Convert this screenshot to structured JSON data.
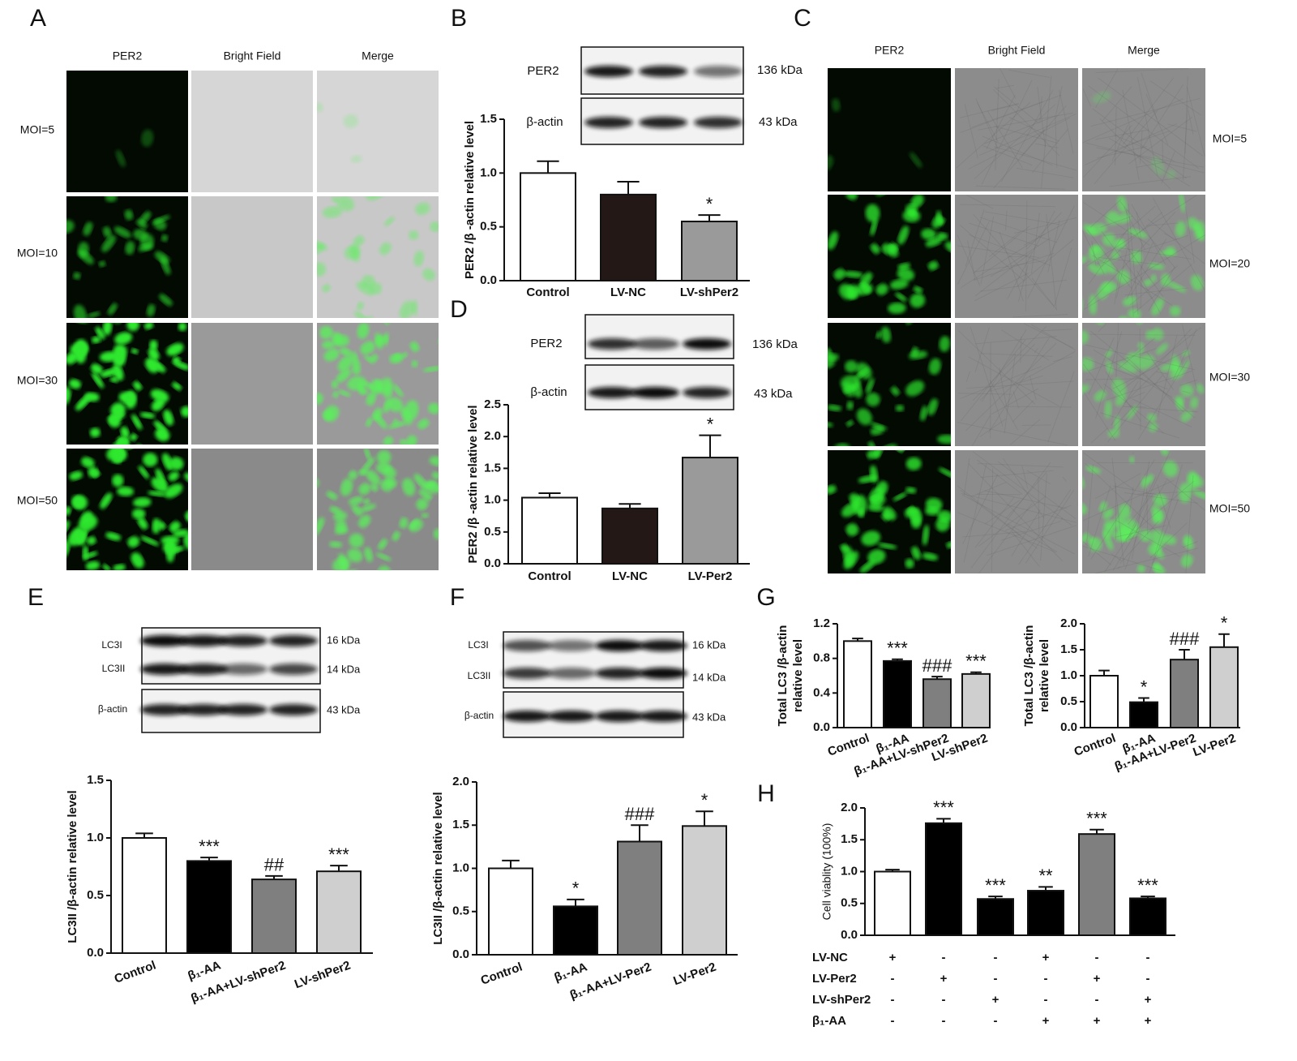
{
  "panels": {
    "A": {
      "letter": "A",
      "columns": [
        "PER2",
        "Bright Field",
        "Merge"
      ],
      "rows": [
        "MOI=5",
        "MOI=10",
        "MOI=30",
        "MOI=50"
      ]
    },
    "B": {
      "letter": "B",
      "blot": {
        "labels": [
          "PER2",
          "β-actin"
        ],
        "sizes": [
          "136 kDa",
          "43 kDa"
        ]
      }
    },
    "C": {
      "letter": "C",
      "columns": [
        "PER2",
        "Bright Field",
        "Merge"
      ],
      "rows": [
        "MOI=5",
        "MOI=20",
        "MOI=30",
        "MOI=50"
      ]
    },
    "D": {
      "letter": "D",
      "blot": {
        "labels": [
          "PER2",
          "β-actin"
        ],
        "sizes": [
          "136 kDa",
          "43 kDa"
        ]
      }
    },
    "E": {
      "letter": "E",
      "blot": {
        "labels": [
          "LC3I",
          "LC3II",
          "β-actin"
        ],
        "sizes": [
          "16 kDa",
          "14 kDa",
          "43 kDa"
        ]
      }
    },
    "F": {
      "letter": "F",
      "blot": {
        "labels": [
          "LC3I",
          "LC3II",
          "β-actin"
        ],
        "sizes": [
          "16 kDa",
          "14 kDa",
          "43 kDa"
        ]
      }
    },
    "G": {
      "letter": "G"
    },
    "H": {
      "letter": "H"
    }
  },
  "chart_data": [
    {
      "type": "bar",
      "ylabel": "PER2 /β -actin relative level",
      "categories": [
        "Control",
        "LV-NC",
        "LV-shPer2"
      ],
      "values": [
        1.0,
        0.8,
        0.55
      ],
      "errors": [
        0.11,
        0.12,
        0.06
      ],
      "annotations": [
        null,
        null,
        "*"
      ],
      "colors": [
        "#ffffff",
        "#231815",
        "#9a9a9a"
      ],
      "ylim": [
        0,
        1.5
      ],
      "yticks": [
        {
          "value": 0,
          "label": "0.0"
        },
        0.5,
        {
          "value": 1,
          "label": "1.0"
        },
        1.5
      ]
    },
    {
      "type": "bar",
      "ylabel": "PER2 /β -actin relative level",
      "categories": [
        "Control",
        "LV-NC",
        "LV-Per2"
      ],
      "values": [
        1.04,
        0.87,
        1.67
      ],
      "errors": [
        0.07,
        0.07,
        0.35
      ],
      "annotations": [
        null,
        null,
        "*"
      ],
      "colors": [
        "#ffffff",
        "#231815",
        "#9a9a9a"
      ],
      "ylim": [
        0,
        2.5
      ],
      "yticks": [
        {
          "value": 0,
          "label": "0.0"
        },
        0.5,
        {
          "value": 1,
          "label": "1.0"
        },
        1.5,
        {
          "value": 2,
          "label": "2.0"
        },
        2.5
      ]
    },
    {
      "type": "bar",
      "ylabel": "LC3II /β-actin relative level",
      "categories": [
        "Control",
        "β₁-AA",
        "β₁-AA+LV-shPer2",
        "LV-shPer2"
      ],
      "values": [
        1.0,
        0.8,
        0.64,
        0.71
      ],
      "errors": [
        0.04,
        0.03,
        0.03,
        0.05
      ],
      "annotations": [
        null,
        "***",
        "##",
        "***"
      ],
      "colors": [
        "#ffffff",
        "#000000",
        "#7f7f7f",
        "#cfcfcf"
      ],
      "ylim": [
        0,
        1.5
      ],
      "yticks": [
        {
          "value": 0,
          "label": "0.0"
        },
        0.5,
        {
          "value": 1,
          "label": "1.0"
        },
        1.5
      ]
    },
    {
      "type": "bar",
      "ylabel": "LC3II /β-actin relative level",
      "categories": [
        "Control",
        "β₁-AA",
        "β₁-AA+LV-Per2",
        "LV-Per2"
      ],
      "values": [
        1.0,
        0.56,
        1.31,
        1.49
      ],
      "errors": [
        0.09,
        0.08,
        0.19,
        0.17
      ],
      "annotations": [
        null,
        "*",
        "###",
        "*"
      ],
      "colors": [
        "#ffffff",
        "#000000",
        "#7f7f7f",
        "#cfcfcf"
      ],
      "ylim": [
        0,
        2
      ],
      "yticks": [
        {
          "value": 0,
          "label": "0.0"
        },
        0.5,
        {
          "value": 1,
          "label": "1.0"
        },
        1.5,
        {
          "value": 2,
          "label": "2.0"
        }
      ]
    },
    {
      "type": "bar",
      "ylabel": [
        "Total LC3 /β-actin",
        "relative level"
      ],
      "categories": [
        "Control",
        "β₁-AA",
        "β₁-AA+LV-shPer2",
        "LV-shPer2"
      ],
      "values": [
        1.0,
        0.77,
        0.56,
        0.62
      ],
      "errors": [
        0.03,
        0.02,
        0.03,
        0.02
      ],
      "annotations": [
        null,
        "***",
        "###",
        "***"
      ],
      "colors": [
        "#ffffff",
        "#000000",
        "#7f7f7f",
        "#cfcfcf"
      ],
      "ylim": [
        0,
        1.2
      ],
      "yticks": [
        {
          "value": 0,
          "label": "0.0"
        },
        0.4,
        0.8,
        1.2
      ]
    },
    {
      "type": "bar",
      "ylabel": [
        "Total LC3 /β-actin",
        "relative level"
      ],
      "categories": [
        "Control",
        "β₁-AA",
        "β₁-AA+LV-Per2",
        "LV-Per2"
      ],
      "values": [
        1.0,
        0.49,
        1.31,
        1.55
      ],
      "errors": [
        0.1,
        0.08,
        0.19,
        0.25
      ],
      "annotations": [
        null,
        "*",
        "###",
        "*"
      ],
      "colors": [
        "#ffffff",
        "#000000",
        "#7f7f7f",
        "#cfcfcf"
      ],
      "ylim": [
        0,
        2
      ],
      "yticks": [
        {
          "value": 0,
          "label": "0.0"
        },
        0.5,
        {
          "value": 1,
          "label": "1.0"
        },
        1.5,
        {
          "value": 2,
          "label": "2.0"
        }
      ]
    },
    {
      "type": "bar",
      "ylabel": "Cell viablity (100%)",
      "values": [
        1.0,
        1.76,
        0.57,
        0.7,
        1.59,
        0.58
      ],
      "errors": [
        0.03,
        0.07,
        0.04,
        0.06,
        0.07,
        0.03
      ],
      "annotations": [
        null,
        "***",
        "***",
        "**",
        "***",
        "***"
      ],
      "colors": [
        "#ffffff",
        "#000000",
        "#000000",
        "#000000",
        "#7f7f7f",
        "#000000"
      ],
      "ylim": [
        0,
        2
      ],
      "yticks": [
        {
          "value": 0,
          "label": "0.0"
        },
        0.5,
        {
          "value": 1,
          "label": "1.0"
        },
        1.5,
        {
          "value": 2,
          "label": "2.0"
        }
      ],
      "conditions": [
        {
          "name": "LV-NC",
          "marks": [
            "+",
            "-",
            "-",
            "+",
            "-",
            "-"
          ]
        },
        {
          "name": "LV-Per2",
          "marks": [
            "-",
            "+",
            "-",
            "-",
            "+",
            "-"
          ]
        },
        {
          "name": "LV-shPer2",
          "marks": [
            "-",
            "-",
            "+",
            "-",
            "-",
            "+"
          ]
        },
        {
          "name": "β₁-AA",
          "marks": [
            "-",
            "-",
            "-",
            "+",
            "+",
            "+"
          ]
        }
      ]
    }
  ]
}
